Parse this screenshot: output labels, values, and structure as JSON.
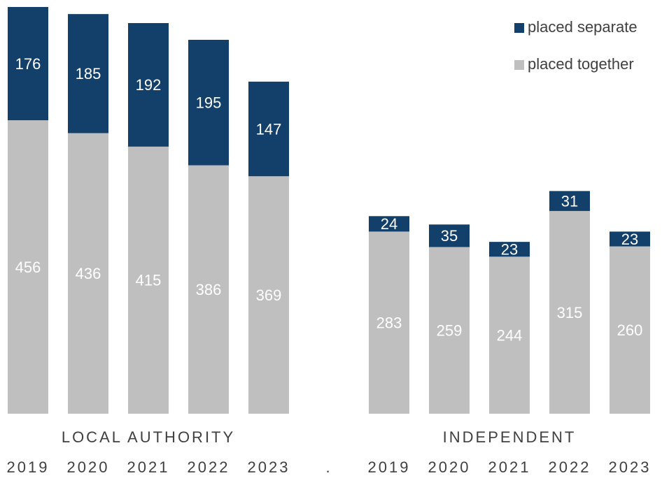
{
  "chart_data": {
    "type": "stacked-bar",
    "categories": [
      "2019",
      "2020",
      "2021",
      "2022",
      "2023",
      ".",
      "2019",
      "2020",
      "2021",
      "2022",
      "2023"
    ],
    "series": [
      {
        "name": "placed together",
        "color": "#bfbfbf",
        "values": [
          456,
          436,
          415,
          386,
          369,
          null,
          283,
          259,
          244,
          315,
          260
        ]
      },
      {
        "name": "placed separate",
        "color": "#133f6b",
        "values": [
          176,
          185,
          192,
          195,
          147,
          null,
          24,
          35,
          23,
          31,
          23
        ]
      }
    ],
    "annotations": [
      "LOCAL AUTHORITY",
      "INDEPENDENT"
    ],
    "ylim": [
      0,
      632
    ],
    "legend": "top-right"
  }
}
